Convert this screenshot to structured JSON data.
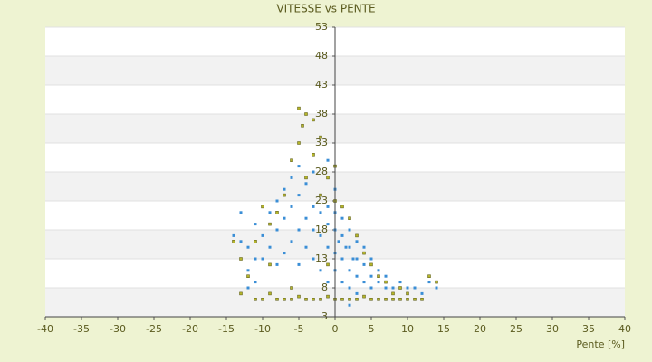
{
  "chart_data": {
    "type": "scatter",
    "title": "VITESSE vs PENTE",
    "x_label": "Pente [%]",
    "xlim": [
      -40,
      40
    ],
    "xticks": [
      -40,
      -35,
      -30,
      -25,
      -20,
      -15,
      -10,
      -5,
      0,
      5,
      10,
      15,
      20,
      25,
      30,
      35,
      40
    ],
    "ylim": [
      3,
      53
    ],
    "yticks": [
      3,
      8,
      13,
      18,
      23,
      28,
      33,
      38,
      43,
      48,
      53
    ],
    "banded_grid": true,
    "series": [
      {
        "color": "#3a8ed6",
        "x": [
          -14,
          -13,
          -13,
          -12,
          -12,
          -11,
          -11,
          -10,
          -10,
          -9,
          -9,
          -8,
          -8,
          -8,
          -7,
          -7,
          -7,
          -6,
          -6,
          -6,
          -5,
          -5,
          -5,
          -5,
          -4,
          -4,
          -4,
          -3,
          -3,
          -3,
          -3,
          -2,
          -2,
          -2,
          -2,
          -1,
          -1,
          -1,
          -1,
          0,
          0,
          0,
          0,
          0,
          0.5,
          1,
          1,
          1,
          1,
          1.5,
          2,
          2,
          2,
          2,
          2.5,
          3,
          3,
          3,
          3,
          4,
          4,
          4,
          5,
          5,
          5,
          6,
          6,
          7,
          7,
          8,
          9,
          10,
          11,
          12,
          14,
          13,
          -12,
          -11,
          0,
          -1,
          2
        ],
        "values": [
          17,
          16,
          21,
          15,
          11,
          19,
          9,
          17,
          13,
          21,
          15,
          23,
          12,
          18,
          20,
          25,
          14,
          22,
          27,
          16,
          18,
          24,
          29,
          12,
          20,
          26,
          15,
          22,
          18,
          28,
          13,
          21,
          17,
          24,
          11,
          19,
          15,
          22,
          9,
          18,
          14,
          21,
          11,
          25,
          16,
          17,
          13,
          20,
          9,
          15,
          15,
          11,
          18,
          8,
          13,
          13,
          10,
          16,
          7,
          12,
          9,
          15,
          10,
          8,
          13,
          9,
          11,
          8,
          10,
          8,
          9,
          8,
          8,
          7,
          8,
          9,
          8,
          13,
          6,
          30,
          5
        ]
      },
      {
        "color": "#b5b52a",
        "x": [
          -11,
          -10,
          -9,
          -8,
          -7,
          -6,
          -5,
          -4,
          -3,
          -2,
          -1,
          0,
          1,
          2,
          3,
          4,
          5,
          6,
          7,
          8,
          9,
          10,
          11,
          12,
          -5,
          -4,
          -4.5,
          -3,
          -5,
          -6,
          -3,
          -4,
          -2,
          -7,
          -8,
          -9,
          -10,
          -11,
          -13,
          -12,
          -9,
          -1,
          0,
          1,
          2,
          -2,
          3,
          4,
          5,
          6,
          7,
          8,
          9,
          10,
          13,
          14,
          -13,
          -14,
          -6,
          -1,
          0
        ],
        "values": [
          6,
          6,
          7,
          6,
          6,
          6,
          6.5,
          6,
          6,
          6,
          6.5,
          6,
          6,
          6,
          6,
          6.5,
          6,
          6,
          6,
          6,
          6,
          6,
          6,
          6,
          39,
          38,
          36,
          37,
          33,
          30,
          31,
          27,
          34,
          24,
          21,
          19,
          22,
          16,
          13,
          10,
          12,
          27,
          29,
          22,
          20,
          24,
          17,
          14,
          12,
          10,
          9,
          7,
          8,
          7,
          10,
          9,
          7,
          16,
          8,
          12,
          23
        ]
      }
    ]
  }
}
